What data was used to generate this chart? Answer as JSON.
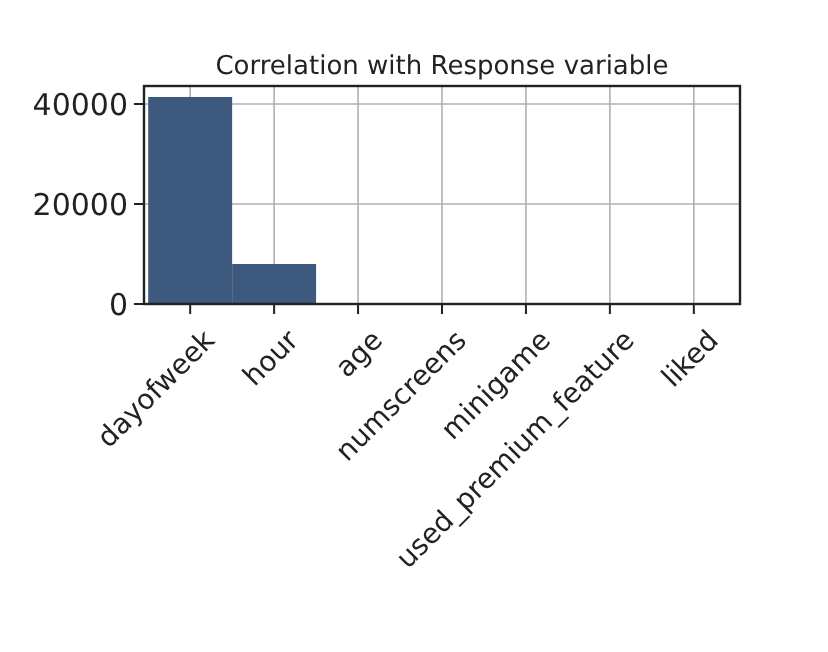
{
  "chart_data": {
    "type": "bar",
    "title": "Correlation with Response variable",
    "categories": [
      "dayofweek",
      "hour",
      "age",
      "numscreens",
      "minigame",
      "used_premium_feature",
      "liked"
    ],
    "values": [
      41400,
      8000,
      null,
      null,
      null,
      null,
      null
    ],
    "color": "#3d5a7e",
    "ylim": [
      0,
      43600
    ],
    "yticks": [
      0,
      20000,
      40000
    ],
    "grid": true
  }
}
